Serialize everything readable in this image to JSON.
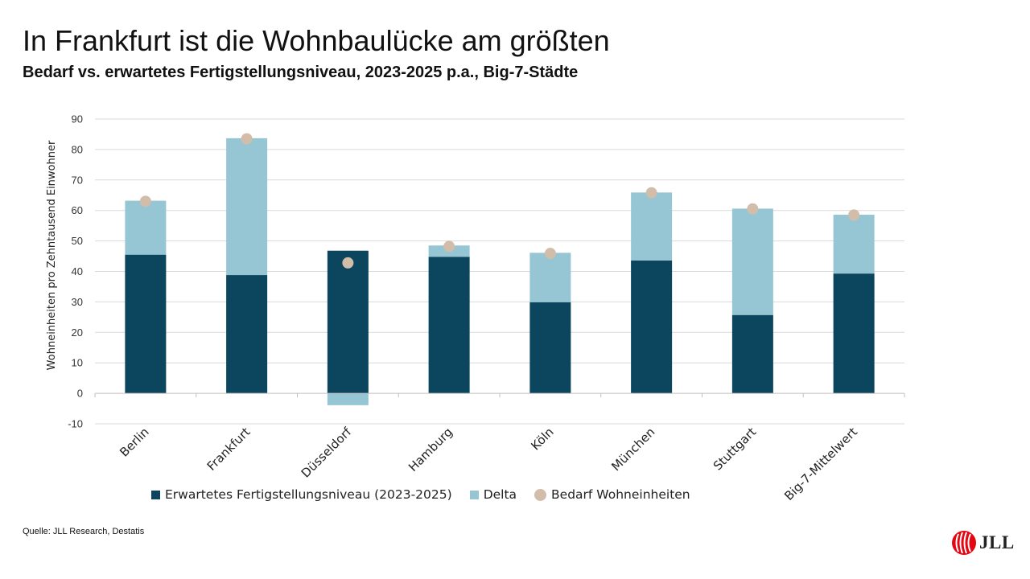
{
  "header": {
    "title": "In Frankfurt ist die Wohnbaulücke am größten",
    "subtitle": "Bedarf vs. erwartetes Fertigstellungsniveau, 2023-2025 p.a., Big-7-Städte"
  },
  "chart_data": {
    "type": "bar",
    "stacked": true,
    "categories": [
      "Berlin",
      "Frankfurt",
      "Düsseldorf",
      "Hamburg",
      "Köln",
      "München",
      "Stuttgart",
      "Big-7-Mittelwert"
    ],
    "series": [
      {
        "name": "Erwartetes Fertigstellungsniveau (2023-2025)",
        "type": "bar",
        "color": "#0b465e",
        "values": [
          45.5,
          38.8,
          46.8,
          44.8,
          29.9,
          43.6,
          25.7,
          39.3
        ]
      },
      {
        "name": "Delta",
        "type": "bar",
        "color": "#96c6d4",
        "values": [
          17.7,
          44.9,
          -3.9,
          3.7,
          16.2,
          22.3,
          34.9,
          19.3
        ]
      },
      {
        "name": "Bedarf Wohneinheiten",
        "type": "dot",
        "color": "#d2bdab",
        "values": [
          63.0,
          83.5,
          42.8,
          48.2,
          45.9,
          65.8,
          60.5,
          58.5
        ]
      }
    ],
    "ylabel": "Wohneinheiten pro Zehntausend Einwohner",
    "xlabel": "",
    "ylim": [
      -10,
      90
    ],
    "yticks": [
      -10,
      0,
      10,
      20,
      30,
      40,
      50,
      60,
      70,
      80,
      90
    ],
    "grid": true,
    "legend": "bottom"
  },
  "footer": {
    "source": "Quelle: JLL Research, Destatis",
    "logo_text": "JLL"
  }
}
